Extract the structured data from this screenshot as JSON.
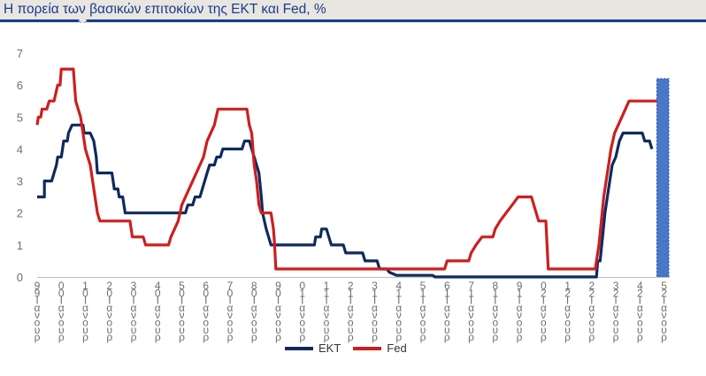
{
  "title": "Η πορεία των βασικών επιτοκίων της ΕΚΤ και Fed, %",
  "colors": {
    "ekt": "#0f2a5e",
    "fed": "#cc1f1f",
    "shade": "#4a78c8",
    "title": "#1b3a8c"
  },
  "chart_data": {
    "type": "line",
    "title": "Η πορεία των βασικών επιτοκίων της ΕΚΤ και Fed, %",
    "ylim": [
      0,
      7
    ],
    "yticks": [
      "0",
      "1",
      "2",
      "3",
      "4",
      "5",
      "6",
      "7"
    ],
    "xlim": [
      1999,
      2025.2
    ],
    "xticks": [
      {
        "x": 1999,
        "label": "9\n9\nΙ\nα\nν\nο\nυ\nρ"
      },
      {
        "x": 2000,
        "label": "0\n0\nΙ\nα\nν\nο\nυ\nρ"
      },
      {
        "x": 2001,
        "label": "1\n0\nΙ\nα\nν\nο\nυ\nρ"
      },
      {
        "x": 2002,
        "label": "2\n0\nΙ\nα\nν\nο\nυ\nρ"
      },
      {
        "x": 2003,
        "label": "3\n0\nΙ\nα\nν\nο\nυ\nρ"
      },
      {
        "x": 2004,
        "label": "4\n0\nΙ\nα\nν\nο\nυ\nρ"
      },
      {
        "x": 2005,
        "label": "5\n0\nΙ\nα\nν\nο\nυ\nρ"
      },
      {
        "x": 2006,
        "label": "6\n0\nΙ\nα\nν\nο\nυ\nρ"
      },
      {
        "x": 2007,
        "label": "7\n0\nΙ\nα\nν\nο\nυ\nρ"
      },
      {
        "x": 2008,
        "label": "8\n0\nΙ\nα\nν\nο\nυ\nρ"
      },
      {
        "x": 2009,
        "label": "9\n0\nΙ\nα\nν\nο\nυ\nρ"
      },
      {
        "x": 2010,
        "label": "0\n1\nΙ\nα\nν\nο\nυ\nρ"
      },
      {
        "x": 2011,
        "label": "1\n1\nΙ\nα\nν\nο\nυ\nρ"
      },
      {
        "x": 2012,
        "label": "2\n1\nΙ\nα\nν\nο\nυ\nρ"
      },
      {
        "x": 2013,
        "label": "3\n1\nΙ\nα\nν\nο\nυ\nρ"
      },
      {
        "x": 2014,
        "label": "4\n1\nΙ\nα\nν\nο\nυ\nρ"
      },
      {
        "x": 2015,
        "label": "5\n1\nΙ\nα\nν\nο\nυ\nρ"
      },
      {
        "x": 2016,
        "label": "6\n1\nΙ\nα\nν\nο\nυ\nρ"
      },
      {
        "x": 2017,
        "label": "7\n1\nΙ\nα\nν\nο\nυ\nρ"
      },
      {
        "x": 2018,
        "label": "8\n1\nΙ\nα\nν\nο\nυ\nρ"
      },
      {
        "x": 2019,
        "label": "9\n1\nΙ\nα\nν\nο\nυ\nρ"
      },
      {
        "x": 2020,
        "label": "0\n2\nΙ\nα\nν\nο\nυ\nρ"
      },
      {
        "x": 2021,
        "label": "1\n2\nΙ\nα\nν\nο\nυ\nρ"
      },
      {
        "x": 2022,
        "label": "2\n2\nΙ\nα\nν\nο\nυ\nρ"
      },
      {
        "x": 2023,
        "label": "3\n2\nΙ\nα\nν\nο\nυ\nρ"
      },
      {
        "x": 2024,
        "label": "4\n2\nΙ\nα\nν\nο\nυ\nρ"
      },
      {
        "x": 2025,
        "label": "5\n2\nΙ\nα\nν\nο\nυ\nρ"
      }
    ],
    "legend": "bottom-center",
    "grid": false,
    "shaded_region": {
      "x0": 2024.7,
      "x1": 2025.2,
      "y0": 0,
      "y1": 6.2
    },
    "series": [
      {
        "name": "ΕΚΤ",
        "color": "#0f2a5e",
        "points": [
          [
            1999,
            2.5
          ],
          [
            1999.3,
            2.5
          ],
          [
            1999.3,
            3.0
          ],
          [
            1999.6,
            3.0
          ],
          [
            1999.7,
            3.25
          ],
          [
            1999.8,
            3.5
          ],
          [
            1999.85,
            3.75
          ],
          [
            2000.0,
            3.75
          ],
          [
            2000.1,
            4.25
          ],
          [
            2000.25,
            4.25
          ],
          [
            2000.3,
            4.5
          ],
          [
            2000.45,
            4.75
          ],
          [
            2000.9,
            4.75
          ],
          [
            2000.95,
            4.5
          ],
          [
            2001.2,
            4.5
          ],
          [
            2001.35,
            4.25
          ],
          [
            2001.45,
            3.75
          ],
          [
            2001.5,
            3.25
          ],
          [
            2002.1,
            3.25
          ],
          [
            2002.2,
            2.75
          ],
          [
            2002.35,
            2.75
          ],
          [
            2002.4,
            2.5
          ],
          [
            2002.55,
            2.5
          ],
          [
            2002.65,
            2.0
          ],
          [
            2005.15,
            2.0
          ],
          [
            2005.25,
            2.25
          ],
          [
            2005.45,
            2.25
          ],
          [
            2005.55,
            2.5
          ],
          [
            2005.75,
            2.5
          ],
          [
            2005.85,
            2.75
          ],
          [
            2005.95,
            3.0
          ],
          [
            2006.05,
            3.25
          ],
          [
            2006.15,
            3.5
          ],
          [
            2006.35,
            3.5
          ],
          [
            2006.45,
            3.75
          ],
          [
            2006.6,
            3.75
          ],
          [
            2006.7,
            4.0
          ],
          [
            2007.5,
            4.0
          ],
          [
            2007.6,
            4.25
          ],
          [
            2007.8,
            4.25
          ],
          [
            2008.0,
            3.75
          ],
          [
            2008.2,
            3.25
          ],
          [
            2008.3,
            2.5
          ],
          [
            2008.35,
            2.0
          ],
          [
            2008.5,
            1.5
          ],
          [
            2008.6,
            1.25
          ],
          [
            2008.7,
            1.0
          ],
          [
            2010.5,
            1.0
          ],
          [
            2010.55,
            1.25
          ],
          [
            2010.75,
            1.25
          ],
          [
            2010.8,
            1.5
          ],
          [
            2011.0,
            1.5
          ],
          [
            2011.1,
            1.25
          ],
          [
            2011.2,
            1.0
          ],
          [
            2011.7,
            1.0
          ],
          [
            2011.8,
            0.75
          ],
          [
            2012.5,
            0.75
          ],
          [
            2012.6,
            0.5
          ],
          [
            2013.1,
            0.5
          ],
          [
            2013.2,
            0.25
          ],
          [
            2013.5,
            0.25
          ],
          [
            2013.6,
            0.15
          ],
          [
            2013.9,
            0.05
          ],
          [
            2014.3,
            0.05
          ],
          [
            2015.4,
            0.05
          ],
          [
            2015.5,
            0.0
          ],
          [
            2021.9,
            0.0
          ],
          [
            2022.2,
            0.0
          ],
          [
            2022.25,
            0.5
          ],
          [
            2022.35,
            0.5
          ],
          [
            2022.45,
            1.25
          ],
          [
            2022.55,
            2.0
          ],
          [
            2022.65,
            2.5
          ],
          [
            2022.75,
            3.0
          ],
          [
            2022.85,
            3.5
          ],
          [
            2023.0,
            3.75
          ],
          [
            2023.15,
            4.25
          ],
          [
            2023.3,
            4.5
          ],
          [
            2024.1,
            4.5
          ],
          [
            2024.2,
            4.25
          ],
          [
            2024.4,
            4.25
          ],
          [
            2024.5,
            4.0
          ]
        ]
      },
      {
        "name": "Fed",
        "color": "#cc1f1f",
        "points": [
          [
            1999,
            4.75
          ],
          [
            1999.05,
            5.0
          ],
          [
            1999.15,
            5.0
          ],
          [
            1999.2,
            5.25
          ],
          [
            1999.4,
            5.25
          ],
          [
            1999.5,
            5.5
          ],
          [
            1999.7,
            5.5
          ],
          [
            1999.85,
            6.0
          ],
          [
            1999.95,
            6.0
          ],
          [
            2000.0,
            6.5
          ],
          [
            2000.5,
            6.5
          ],
          [
            2000.6,
            5.5
          ],
          [
            2000.8,
            5.0
          ],
          [
            2000.9,
            4.5
          ],
          [
            2001.0,
            4.0
          ],
          [
            2001.1,
            3.75
          ],
          [
            2001.2,
            3.5
          ],
          [
            2001.3,
            3.0
          ],
          [
            2001.4,
            2.5
          ],
          [
            2001.5,
            2.0
          ],
          [
            2001.6,
            1.75
          ],
          [
            2002.85,
            1.75
          ],
          [
            2002.95,
            1.25
          ],
          [
            2003.4,
            1.25
          ],
          [
            2003.5,
            1.0
          ],
          [
            2004.45,
            1.0
          ],
          [
            2004.55,
            1.25
          ],
          [
            2004.7,
            1.5
          ],
          [
            2004.85,
            1.75
          ],
          [
            2005.0,
            2.25
          ],
          [
            2005.15,
            2.5
          ],
          [
            2005.3,
            2.75
          ],
          [
            2005.45,
            3.0
          ],
          [
            2005.6,
            3.25
          ],
          [
            2005.75,
            3.5
          ],
          [
            2005.9,
            3.75
          ],
          [
            2006.05,
            4.25
          ],
          [
            2006.2,
            4.5
          ],
          [
            2006.35,
            4.75
          ],
          [
            2006.5,
            5.25
          ],
          [
            2007.7,
            5.25
          ],
          [
            2007.8,
            4.75
          ],
          [
            2007.9,
            4.5
          ],
          [
            2008.0,
            3.5
          ],
          [
            2008.1,
            3.0
          ],
          [
            2008.2,
            2.25
          ],
          [
            2008.3,
            2.0
          ],
          [
            2008.7,
            2.0
          ],
          [
            2008.8,
            1.5
          ],
          [
            2008.85,
            1.0
          ],
          [
            2008.9,
            0.25
          ],
          [
            2015.9,
            0.25
          ],
          [
            2016.0,
            0.5
          ],
          [
            2016.9,
            0.5
          ],
          [
            2017.0,
            0.75
          ],
          [
            2017.2,
            1.0
          ],
          [
            2017.45,
            1.25
          ],
          [
            2017.9,
            1.25
          ],
          [
            2018.0,
            1.5
          ],
          [
            2018.2,
            1.75
          ],
          [
            2018.45,
            2.0
          ],
          [
            2018.7,
            2.25
          ],
          [
            2018.95,
            2.5
          ],
          [
            2019.5,
            2.5
          ],
          [
            2019.6,
            2.25
          ],
          [
            2019.7,
            2.0
          ],
          [
            2019.8,
            1.75
          ],
          [
            2020.1,
            1.75
          ],
          [
            2020.2,
            0.25
          ],
          [
            2022.15,
            0.25
          ],
          [
            2022.2,
            0.5
          ],
          [
            2022.3,
            1.0
          ],
          [
            2022.4,
            1.75
          ],
          [
            2022.5,
            2.5
          ],
          [
            2022.65,
            3.25
          ],
          [
            2022.8,
            4.0
          ],
          [
            2022.95,
            4.5
          ],
          [
            2023.1,
            4.75
          ],
          [
            2023.25,
            5.0
          ],
          [
            2023.4,
            5.25
          ],
          [
            2023.55,
            5.5
          ],
          [
            2024.7,
            5.5
          ]
        ]
      }
    ]
  },
  "legend_labels": {
    "ekt": "ΕΚΤ",
    "fed": "Fed"
  }
}
